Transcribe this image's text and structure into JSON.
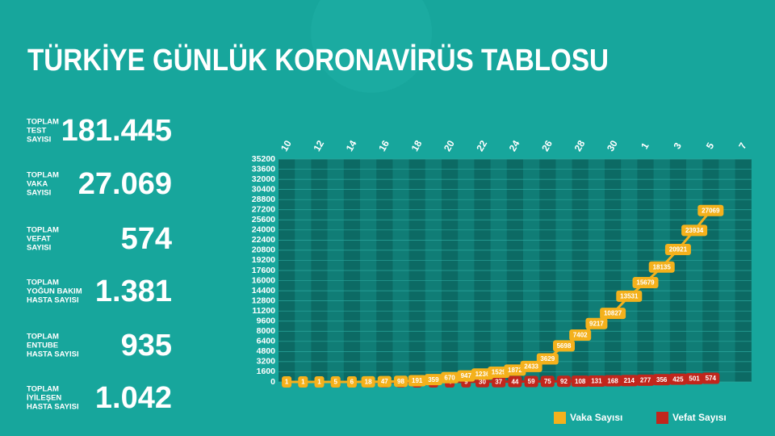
{
  "header": {
    "title": "TÜRKİYE GÜNLÜK KORONAVİRÜS TABLOSU"
  },
  "stats": [
    {
      "label": [
        "TOPLAM",
        "TEST",
        "SAYISI"
      ],
      "value": "181.445"
    },
    {
      "label": [
        "TOPLAM",
        "VAKA",
        "SAYISI"
      ],
      "value": "27.069"
    },
    {
      "label": [
        "TOPLAM",
        "VEFAT",
        "SAYISI"
      ],
      "value": "574"
    },
    {
      "label": [
        "TOPLAM",
        "YOĞUN BAKIM",
        "HASTA SAYISI"
      ],
      "value": "1.381"
    },
    {
      "label": [
        "TOPLAM",
        "ENTUBE",
        "HASTA SAYISI"
      ],
      "value": "935"
    },
    {
      "label": [
        "TOPLAM",
        "İYİLEŞEN",
        "HASTA SAYISI"
      ],
      "value": "1.042"
    }
  ],
  "chart_data": {
    "type": "line",
    "categories": [
      "10",
      null,
      "12",
      null,
      "14",
      null,
      "16",
      null,
      "18",
      null,
      "20",
      null,
      "22",
      null,
      "24",
      null,
      "26",
      null,
      "28",
      null,
      "30",
      null,
      "1",
      null,
      "3",
      null,
      "5",
      null,
      "7"
    ],
    "series": [
      {
        "name": "Vaka Sayısı",
        "color": "#f4b11c",
        "values": [
          1,
          1,
          1,
          5,
          6,
          18,
          47,
          98,
          191,
          359,
          670,
          947,
          1236,
          1529,
          1872,
          2433,
          3629,
          5698,
          7402,
          9217,
          10827,
          13531,
          15679,
          18135,
          20921,
          23934,
          27069,
          null,
          null
        ]
      },
      {
        "name": "Vefat Sayısı",
        "color": "#c1261c",
        "values": [
          0,
          0,
          0,
          0,
          0,
          0,
          0,
          1,
          2,
          3,
          4,
          9,
          30,
          37,
          44,
          59,
          75,
          92,
          108,
          131,
          168,
          214,
          277,
          356,
          425,
          501,
          574,
          null,
          null
        ]
      }
    ],
    "ylim": [
      0,
      35200
    ],
    "yticks": [
      0,
      1600,
      3200,
      4800,
      6400,
      8000,
      9600,
      11200,
      12800,
      14400,
      16000,
      17600,
      19200,
      20800,
      22400,
      24000,
      25600,
      27200,
      28800,
      30400,
      32000,
      33600,
      35200
    ],
    "grid": true
  }
}
